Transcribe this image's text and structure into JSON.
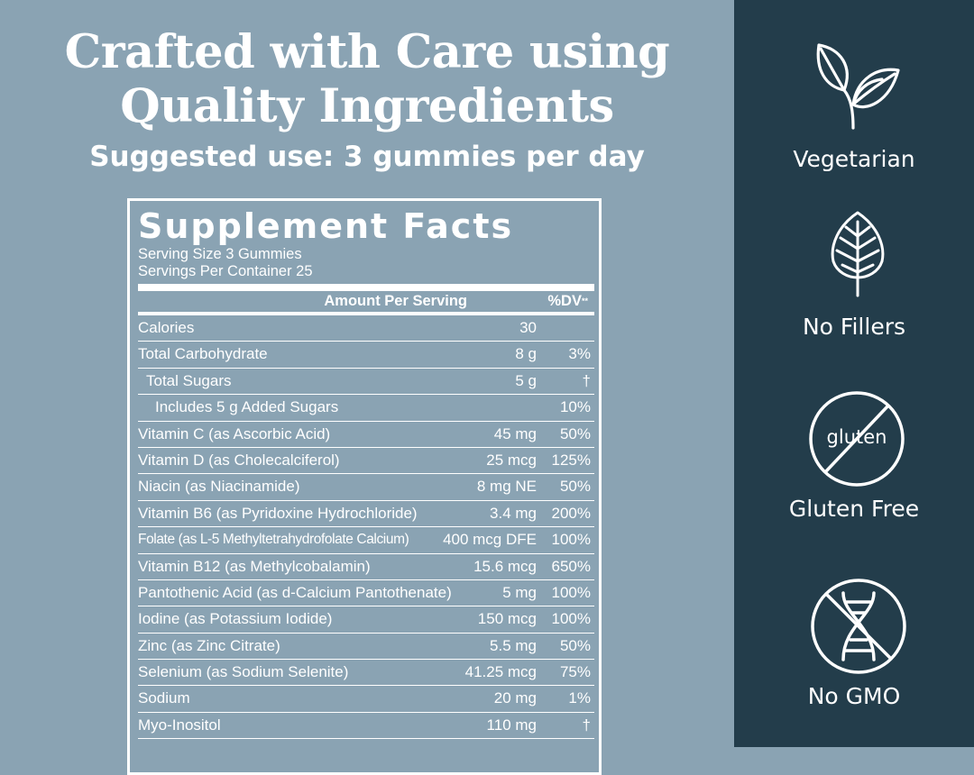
{
  "headline": {
    "line1": "Crafted with Care using",
    "line2": "Quality Ingredients",
    "suggested_use": "Suggested use: 3 gummies per day"
  },
  "supplement_facts": {
    "title": "Supplement Facts",
    "serving_size": "Serving Size 3 Gummies",
    "servings_per_container": "Servings Per Container 25",
    "header_amount": "Amount Per Serving",
    "header_dv": "%DV",
    "header_dv_mark": "**",
    "rows": [
      {
        "name": "Calories",
        "amount": "30",
        "dv": ""
      },
      {
        "name": "Total Carbohydrate",
        "amount": "8 g",
        "dv": "3%"
      },
      {
        "name": "Total Sugars",
        "amount": "5 g",
        "dv": "†"
      },
      {
        "name": "Includes 5 g Added Sugars",
        "amount": "",
        "dv": "10%"
      },
      {
        "name": "Vitamin C (as Ascorbic Acid)",
        "amount": "45 mg",
        "dv": "50%"
      },
      {
        "name": "Vitamin D (as Cholecalciferol)",
        "amount": "25 mcg",
        "dv": "125%"
      },
      {
        "name": "Niacin (as Niacinamide)",
        "amount": "8 mg NE",
        "dv": "50%"
      },
      {
        "name": "Vitamin B6 (as Pyridoxine Hydrochloride)",
        "amount": "3.4 mg",
        "dv": "200%"
      },
      {
        "name": "Folate (as L-5 Methyltetrahydrofolate Calcium)",
        "amount": "400 mcg DFE",
        "dv": "100%"
      },
      {
        "name": "Vitamin B12 (as Methylcobalamin)",
        "amount": "15.6 mcg",
        "dv": "650%"
      },
      {
        "name": "Pantothenic Acid (as d-Calcium Pantothenate)",
        "amount": "5 mg",
        "dv": "100%"
      },
      {
        "name": "Iodine (as Potassium Iodide)",
        "amount": "150 mcg",
        "dv": "100%"
      },
      {
        "name": "Zinc (as Zinc Citrate)",
        "amount": "5.5 mg",
        "dv": "50%"
      },
      {
        "name": "Selenium (as Sodium Selenite)",
        "amount": "41.25 mcg",
        "dv": "75%"
      },
      {
        "name": "Sodium",
        "amount": "20 mg",
        "dv": "1%"
      },
      {
        "name": "Myo-Inositol",
        "amount": "110 mg",
        "dv": "†"
      }
    ]
  },
  "badges": [
    {
      "label": "Vegetarian",
      "icon": "leaves-icon"
    },
    {
      "label": "No Fillers",
      "icon": "leaf-icon"
    },
    {
      "label": "Gluten Free",
      "icon": "gluten-free-icon",
      "icon_text": "gluten"
    },
    {
      "label": "No GMO",
      "icon": "no-gmo-dna-icon"
    }
  ],
  "colors": {
    "left_background": "#8aa3b3",
    "right_panel": "#233d4b",
    "text": "#ffffff"
  }
}
